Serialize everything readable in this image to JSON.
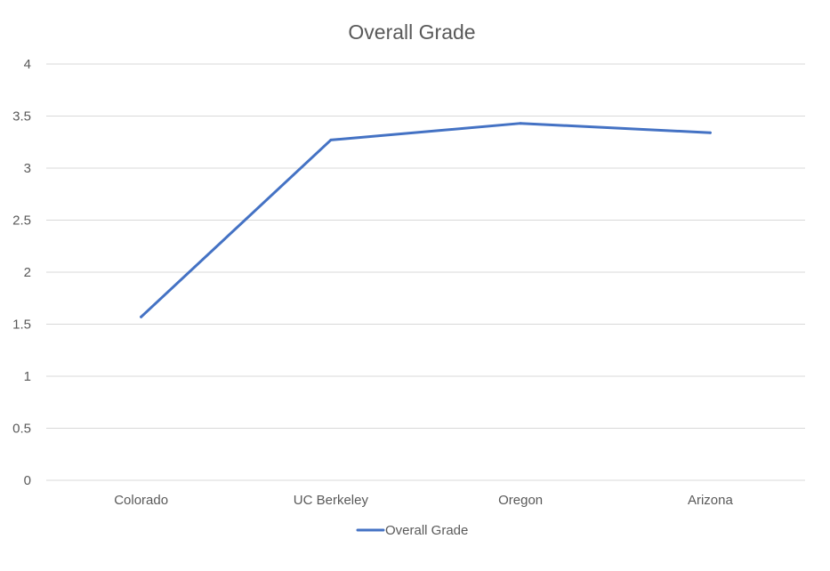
{
  "chart_data": {
    "type": "line",
    "title": "Overall Grade",
    "categories": [
      "Colorado",
      "UC Berkeley",
      "Oregon",
      "Arizona"
    ],
    "series": [
      {
        "name": "Overall Grade",
        "values": [
          1.57,
          3.27,
          3.43,
          3.34
        ],
        "color": "#4472c4"
      }
    ],
    "ylim": [
      0,
      4
    ],
    "yticks": [
      0,
      0.5,
      1,
      1.5,
      2,
      2.5,
      3,
      3.5,
      4
    ],
    "ytick_labels": [
      "0",
      "0.5",
      "1",
      "1.5",
      "2",
      "2.5",
      "3",
      "3.5",
      "4"
    ],
    "xlabel": "",
    "ylabel": "",
    "grid": true,
    "legend_position": "bottom",
    "colors": {
      "gridline": "#d9d9d9",
      "text": "#595959",
      "background": "#ffffff"
    }
  }
}
